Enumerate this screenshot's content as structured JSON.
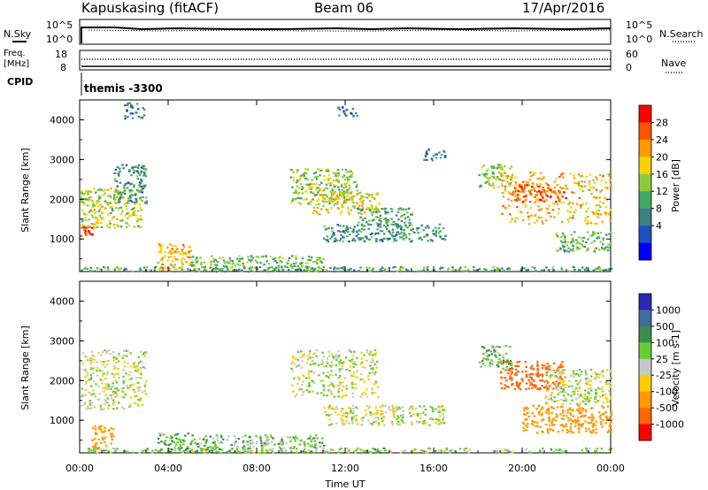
{
  "header": {
    "radar": "Kapuskasing (fitACF)",
    "beam": "Beam 06",
    "date": "17/Apr/2016"
  },
  "noise_panel": {
    "left_label": "N.Sky",
    "right_label": "N.Search",
    "left_ticks": [
      "10^5",
      "10^0"
    ],
    "right_ticks": [
      "10^5",
      "10^0"
    ]
  },
  "freq_panel": {
    "left_label_line1": "Freq.",
    "left_label_line2": "[MHz]",
    "right_label": "Nave",
    "left_ticks": [
      "18",
      "8"
    ],
    "right_ticks": [
      "60",
      "0"
    ]
  },
  "cpid_panel": {
    "label": "CPID",
    "program": "themis -3300"
  },
  "time_axis": {
    "label": "Time UT",
    "ticks": [
      "00:00",
      "04:00",
      "08:00",
      "12:00",
      "16:00",
      "20:00",
      "00:00"
    ]
  },
  "power_colorbar": {
    "title": "Power [dB]",
    "ticks": [
      "28",
      "24",
      "20",
      "16",
      "12",
      "8",
      "4"
    ],
    "colors": [
      "#ff0000",
      "#ff5500",
      "#ff9a00",
      "#f7d100",
      "#8ccc3c",
      "#41a867",
      "#3f7f87",
      "#1f4fc0",
      "#0000ff"
    ]
  },
  "velocity_colorbar": {
    "title": "Velocity [m s-1]",
    "ticks": [
      "1000",
      "500",
      "100",
      "25",
      "-25",
      "-100",
      "-500",
      "-1000"
    ],
    "colors": [
      "#2a2ab0",
      "#3c6ea0",
      "#3c8c50",
      "#66cc33",
      "#c8c8c8",
      "#ffcc00",
      "#ff9900",
      "#ff6600",
      "#ff0000"
    ]
  },
  "chart_data": [
    {
      "type": "heatmap",
      "panel": "power",
      "xlabel": "Time UT",
      "ylabel": "Slant Range [km]",
      "xlim_hours": [
        0,
        24
      ],
      "ylim_km": [
        180,
        4500
      ],
      "yticks": [
        "1000",
        "2000",
        "3000",
        "4000"
      ],
      "regions": [
        {
          "t": [
            0.0,
            0.6
          ],
          "r": [
            1100,
            1350
          ],
          "power": 28
        },
        {
          "t": [
            0.0,
            2.8
          ],
          "r": [
            1300,
            2300
          ],
          "power": 16
        },
        {
          "t": [
            1.5,
            3.0
          ],
          "r": [
            1900,
            2900
          ],
          "power": 8
        },
        {
          "t": [
            2.0,
            2.9
          ],
          "r": [
            4050,
            4450
          ],
          "power": 6
        },
        {
          "t": [
            3.5,
            5.0
          ],
          "r": [
            200,
            900
          ],
          "power": 20
        },
        {
          "t": [
            5.0,
            11.0
          ],
          "r": [
            200,
            600
          ],
          "power": 12
        },
        {
          "t": [
            9.5,
            12.5
          ],
          "r": [
            1900,
            2800
          ],
          "power": 14
        },
        {
          "t": [
            10.5,
            13.5
          ],
          "r": [
            1650,
            2200
          ],
          "power": 18
        },
        {
          "t": [
            11.0,
            16.5
          ],
          "r": [
            950,
            1400
          ],
          "power": 8
        },
        {
          "t": [
            12.5,
            15.0
          ],
          "r": [
            1350,
            1800
          ],
          "power": 10
        },
        {
          "t": [
            11.5,
            12.5
          ],
          "r": [
            4100,
            4350
          ],
          "power": 6
        },
        {
          "t": [
            15.5,
            16.5
          ],
          "r": [
            3000,
            3300
          ],
          "power": 6
        },
        {
          "t": [
            18.0,
            19.5
          ],
          "r": [
            2300,
            2900
          ],
          "power": 14
        },
        {
          "t": [
            19.0,
            24.0
          ],
          "r": [
            1400,
            2700
          ],
          "power": 20
        },
        {
          "t": [
            19.5,
            22.0
          ],
          "r": [
            1950,
            2400
          ],
          "power": 26
        },
        {
          "t": [
            21.5,
            24.0
          ],
          "r": [
            700,
            1200
          ],
          "power": 12
        },
        {
          "t": [
            0.0,
            24.0
          ],
          "r": [
            200,
            320
          ],
          "power": 10
        }
      ]
    },
    {
      "type": "heatmap",
      "panel": "velocity",
      "xlabel": "Time UT",
      "ylabel": "Slant Range [km]",
      "xlim_hours": [
        0,
        24
      ],
      "ylim_km": [
        180,
        4500
      ],
      "yticks": [
        "1000",
        "2000",
        "3000",
        "4000"
      ],
      "regions": [
        {
          "t": [
            0.0,
            3.0
          ],
          "r": [
            1300,
            2800
          ],
          "velocity": 0
        },
        {
          "t": [
            0.5,
            1.5
          ],
          "r": [
            300,
            900
          ],
          "velocity": -300
        },
        {
          "t": [
            3.5,
            5.0
          ],
          "r": [
            200,
            700
          ],
          "velocity": 80
        },
        {
          "t": [
            5.0,
            11.0
          ],
          "r": [
            200,
            650
          ],
          "velocity": 60
        },
        {
          "t": [
            9.5,
            13.5
          ],
          "r": [
            1600,
            2800
          ],
          "velocity": 0
        },
        {
          "t": [
            11.0,
            16.5
          ],
          "r": [
            900,
            1400
          ],
          "velocity": 0
        },
        {
          "t": [
            18.0,
            19.5
          ],
          "r": [
            2300,
            2900
          ],
          "velocity": 80
        },
        {
          "t": [
            19.0,
            21.8
          ],
          "r": [
            1800,
            2500
          ],
          "velocity": -800
        },
        {
          "t": [
            21.0,
            24.0
          ],
          "r": [
            1400,
            2300
          ],
          "velocity": 0
        },
        {
          "t": [
            20.0,
            24.0
          ],
          "r": [
            700,
            1400
          ],
          "velocity": -300
        },
        {
          "t": [
            0.0,
            24.0
          ],
          "r": [
            200,
            320
          ],
          "velocity": 40
        }
      ]
    }
  ]
}
